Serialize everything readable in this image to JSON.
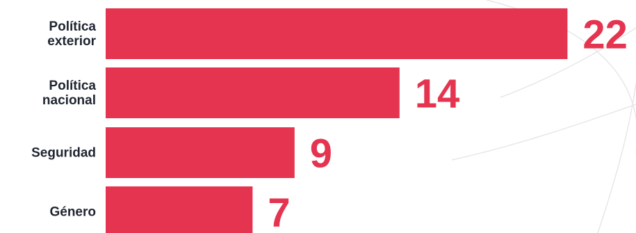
{
  "chart_data": {
    "type": "bar",
    "orientation": "horizontal",
    "categories": [
      [
        "Política",
        "exterior"
      ],
      [
        "Política",
        "nacional"
      ],
      [
        "Seguridad"
      ],
      [
        "Género"
      ]
    ],
    "values": [
      22,
      14,
      9,
      7
    ],
    "bar_color": "#e5344f",
    "value_label_color": "#e5344f",
    "category_label_color": "#1f2430",
    "background": "#ffffff",
    "grid": false,
    "legend": "none"
  }
}
